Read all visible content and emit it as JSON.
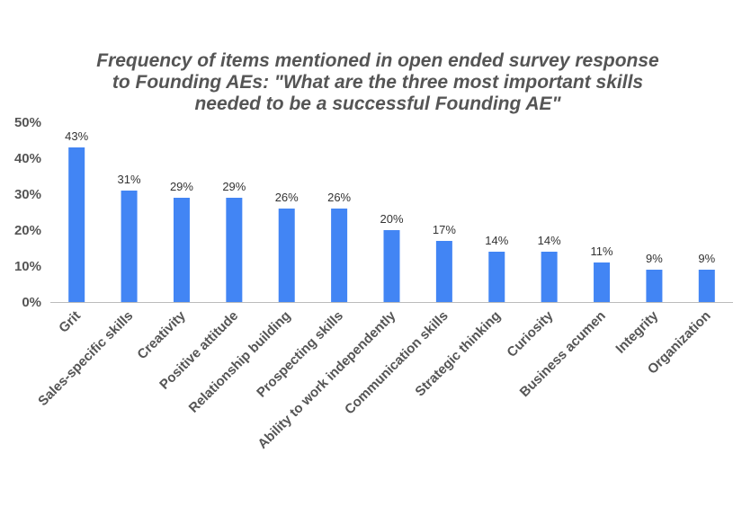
{
  "chart_data": {
    "type": "bar",
    "title_lines": [
      "Frequency of items mentioned in open ended survey response",
      "to Founding AEs: \"What are the three most important skills",
      "needed to be a successful Founding AE\""
    ],
    "categories": [
      "Grit",
      "Sales-specific skills",
      "Creativity",
      "Positive attitude",
      "Relationship building",
      "Prospecting skills",
      "Ability to work independently",
      "Communication skills",
      "Strategic thinking",
      "Curiosity",
      "Business acumen",
      "Integrity",
      "Organization"
    ],
    "values": [
      43,
      31,
      29,
      29,
      26,
      26,
      20,
      17,
      14,
      14,
      11,
      9,
      9
    ],
    "value_labels": [
      "43%",
      "31%",
      "29%",
      "29%",
      "26%",
      "26%",
      "20%",
      "17%",
      "14%",
      "14%",
      "11%",
      "9%",
      "9%"
    ],
    "yticks": [
      0,
      10,
      20,
      30,
      40,
      50
    ],
    "ytick_labels": [
      "0%",
      "10%",
      "20%",
      "30%",
      "40%",
      "50%"
    ],
    "ylim": [
      0,
      50
    ],
    "xlabel": "",
    "ylabel": "",
    "grid": false,
    "bar_color": "#4285F4",
    "axis_color": "#BBBBBB"
  }
}
